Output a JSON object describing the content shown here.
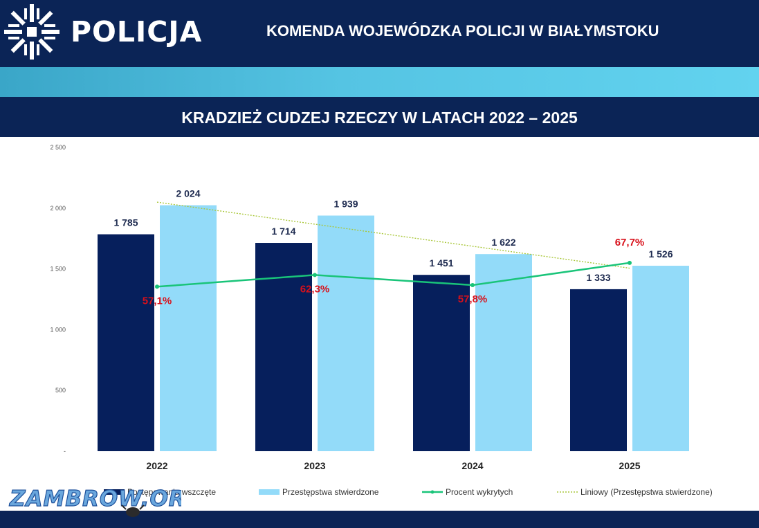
{
  "header": {
    "logo_text": "POLICJA",
    "title": "KOMENDA WOJEWÓDZKA POLICJI W BIAŁYMSTOKU"
  },
  "watermark": {
    "text": "ZAMBROW.ORG"
  },
  "colors": {
    "navy": "#0b2456",
    "bar_navy": "#061f5c",
    "bar_light": "#93dbf9",
    "line_green": "#19c479",
    "trend": "#a9c73a",
    "percent_label": "#d8101a"
  },
  "chart_data": {
    "type": "bar",
    "title": "KRADZIEŻ CUDZEJ RZECZY W LATACH 2022 – 2025",
    "categories": [
      "2022",
      "2023",
      "2024",
      "2025"
    ],
    "ylim": [
      0,
      2500
    ],
    "yticks": [
      {
        "value": 0,
        "label": "-"
      },
      {
        "value": 500,
        "label": "500"
      },
      {
        "value": 1000,
        "label": "1 000"
      },
      {
        "value": 1500,
        "label": "1 500"
      },
      {
        "value": 2000,
        "label": "2 000"
      },
      {
        "value": 2500,
        "label": "2 500"
      }
    ],
    "grid": false,
    "legend_position": "bottom",
    "series": [
      {
        "name": "Postępowania wszczęte",
        "type": "bar",
        "values": [
          1785,
          1714,
          1451,
          1333
        ],
        "labels": [
          "1 785",
          "1 714",
          "1 451",
          "1 333"
        ]
      },
      {
        "name": "Przestępstwa stwierdzone",
        "type": "bar",
        "values": [
          2024,
          1939,
          1622,
          1526
        ],
        "labels": [
          "2 024",
          "1 939",
          "1 622",
          "1 526"
        ]
      },
      {
        "name": "Procent wykrytych",
        "type": "line",
        "percent": [
          57.1,
          62.3,
          57.8,
          67.7
        ],
        "labels": [
          "57,1%",
          "62,3%",
          "57,8%",
          "67,7%"
        ]
      },
      {
        "name": "Liniowy (Przestępstwa stwierdzone)",
        "type": "trendline",
        "of_series": "Przestępstwa stwierdzone"
      }
    ]
  }
}
